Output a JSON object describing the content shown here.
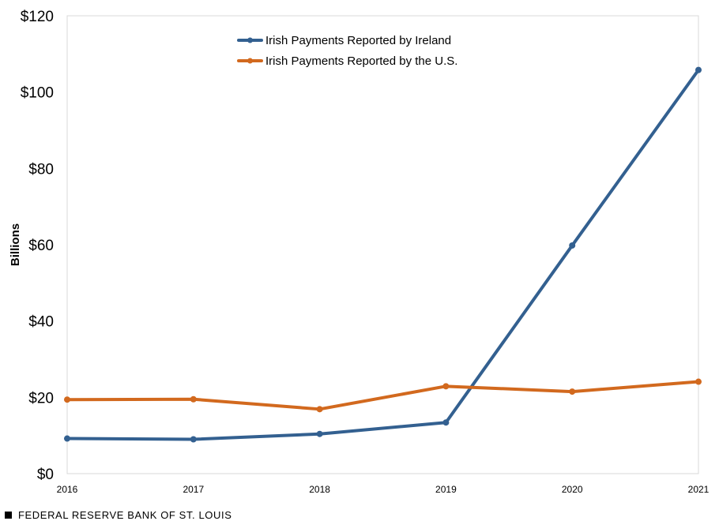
{
  "chart_data": {
    "type": "line",
    "x": [
      "2016",
      "2017",
      "2018",
      "2019",
      "2020",
      "2021"
    ],
    "series": [
      {
        "name": "Irish Payments Reported by Ireland",
        "color": "#336090",
        "values": [
          9.2,
          9.0,
          10.4,
          13.4,
          59.8,
          105.8
        ]
      },
      {
        "name": "Irish Payments Reported by the U.S.",
        "color": "#D2691E",
        "values": [
          19.4,
          19.5,
          16.9,
          22.9,
          21.5,
          24.1
        ]
      }
    ],
    "ylabel": "Billions",
    "ylim": [
      0,
      120
    ],
    "yticks": [
      0,
      20,
      40,
      60,
      80,
      100,
      120
    ],
    "ytick_labels": [
      "$0",
      "$20",
      "$40",
      "$60",
      "$80",
      "$100",
      "$120"
    ],
    "grid": false,
    "legend_position": "top-center"
  },
  "footer": {
    "source": "FEDERAL RESERVE BANK OF ST. LOUIS"
  }
}
